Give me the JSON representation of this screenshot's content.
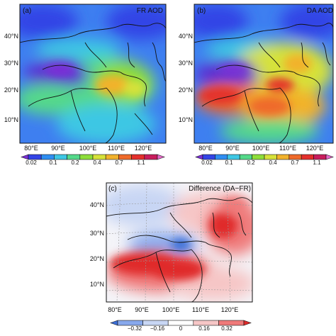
{
  "panels": [
    {
      "id": "a",
      "tag": "(a)",
      "title": "FR AOD",
      "lat_labels": [
        "40°N",
        "30°N",
        "20°N",
        "10°N"
      ],
      "lon_labels": [
        "80°E",
        "90°E",
        "100°E",
        "110°E",
        "120°E"
      ],
      "colorbar_ticks": [
        "0.02",
        "0.1",
        "0.2",
        "0.4",
        "0.7",
        "1.1"
      ]
    },
    {
      "id": "b",
      "tag": "(b)",
      "title": "DA AOD",
      "lat_labels": [
        "40°N",
        "30°N",
        "20°N",
        "10°N"
      ],
      "lon_labels": [
        "80°E",
        "90°E",
        "100°E",
        "110°E",
        "120°E"
      ],
      "colorbar_ticks": [
        "0.02",
        "0.1",
        "0.2",
        "0.4",
        "0.7",
        "1.1"
      ]
    },
    {
      "id": "c",
      "tag": "(c)",
      "title": "Difference (DA−FR)",
      "lat_labels": [
        "40°N",
        "30°N",
        "20°N",
        "10°N"
      ],
      "lon_labels": [
        "80°E",
        "90°E",
        "100°E",
        "110°E",
        "120°E"
      ],
      "colorbar_ticks": [
        "−0.32",
        "−0.16",
        "0",
        "0.16",
        "0.32"
      ]
    }
  ],
  "colors": {
    "aod_scale": [
      "#7a2fd6",
      "#3344e6",
      "#2f8ef2",
      "#3ec7e4",
      "#54d98a",
      "#8ede3a",
      "#d6e23a",
      "#f2b22c",
      "#ef6a2a",
      "#e4302c",
      "#c81d5c",
      "#e668c8"
    ],
    "diff_scale": [
      "#3b6fd8",
      "#87a8ec",
      "#c8d6f4",
      "#ffffff",
      "#f6c6c6",
      "#ef7a7a",
      "#e02a2a"
    ],
    "border": "#111111",
    "grid": "#9a9a9a"
  }
}
